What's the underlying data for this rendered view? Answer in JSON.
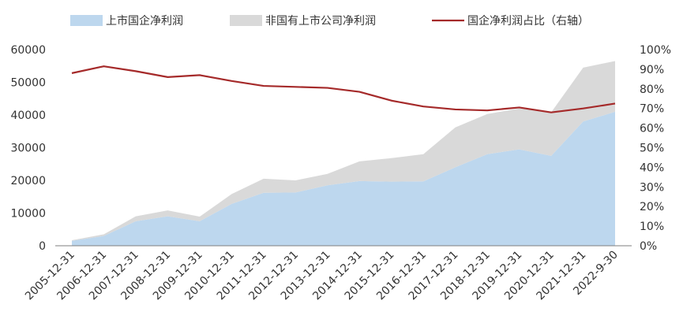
{
  "chart_data": {
    "type": "area",
    "categories": [
      "2005-12-31",
      "2006-12-31",
      "2007-12-31",
      "2008-12-31",
      "2009-12-31",
      "2010-12-31",
      "2011-12-31",
      "2012-12-31",
      "2013-12-31",
      "2014-12-31",
      "2015-12-31",
      "2016-12-31",
      "2017-12-31",
      "2018-12-31",
      "2019-12-31",
      "2020-12-31",
      "2021-12-31",
      "2022-9-30"
    ],
    "series": [
      {
        "name": "上市国企净利润",
        "kind": "area",
        "axis": "left",
        "color": "#BDD7EE",
        "values": [
          1500,
          3000,
          7500,
          9000,
          7500,
          12800,
          16200,
          16300,
          18500,
          19800,
          19600,
          19700,
          24000,
          28000,
          29500,
          27500,
          38000,
          41000
        ]
      },
      {
        "name": "非国有上市公司净利润",
        "kind": "area",
        "axis": "left",
        "color": "#D9D9D9",
        "values": [
          200,
          500,
          1500,
          1800,
          1400,
          3000,
          4300,
          3700,
          3500,
          6000,
          7200,
          8300,
          12200,
          12300,
          12500,
          13300,
          16500,
          15500
        ]
      },
      {
        "name": "国企净利润占比（右轴）",
        "kind": "line",
        "axis": "right",
        "color": "#A52A2A",
        "values": [
          0.88,
          0.915,
          0.89,
          0.86,
          0.87,
          0.84,
          0.815,
          0.81,
          0.805,
          0.785,
          0.74,
          0.71,
          0.695,
          0.69,
          0.705,
          0.68,
          0.7,
          0.725
        ]
      }
    ],
    "y_left": {
      "min": 0,
      "max": 60000,
      "ticks": [
        "0",
        "10000",
        "20000",
        "30000",
        "40000",
        "50000",
        "60000"
      ]
    },
    "y_right": {
      "min": 0,
      "max": 1,
      "ticks": [
        "0%",
        "10%",
        "20%",
        "30%",
        "40%",
        "50%",
        "60%",
        "70%",
        "80%",
        "90%",
        "100%"
      ]
    },
    "grid": false,
    "legend": "top",
    "title": "",
    "xlabel": "",
    "ylabel": ""
  }
}
